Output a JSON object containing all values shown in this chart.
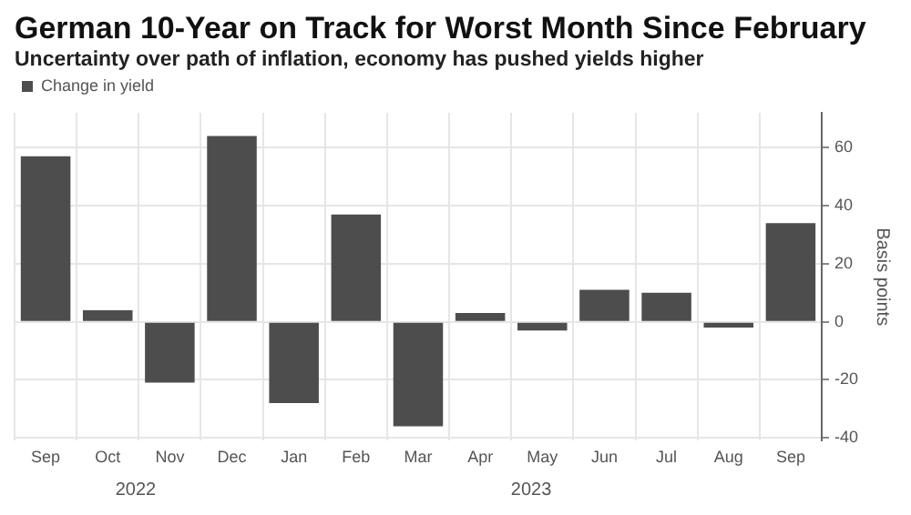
{
  "chart_data": {
    "type": "bar",
    "title": "German 10-Year on Track for Worst Month Since February",
    "subtitle": "Uncertainty over path of inflation, economy has pushed yields higher",
    "ylabel": "Basis points",
    "categories": [
      "Sep",
      "Oct",
      "Nov",
      "Dec",
      "Jan",
      "Feb",
      "Mar",
      "Apr",
      "May",
      "Jun",
      "Jul",
      "Aug",
      "Sep"
    ],
    "series": [
      {
        "name": "Change in yield",
        "color": "#4d4d4d",
        "values": [
          57,
          4,
          -21,
          64,
          -28,
          37,
          -36,
          3,
          -3,
          11,
          10,
          -2,
          34
        ]
      }
    ],
    "ylim": [
      -41,
      72
    ],
    "yticks": [
      -40,
      -20,
      0,
      20,
      40,
      60
    ],
    "annotations": [
      "2022",
      "2023"
    ],
    "grid": true,
    "legend": "top left"
  }
}
